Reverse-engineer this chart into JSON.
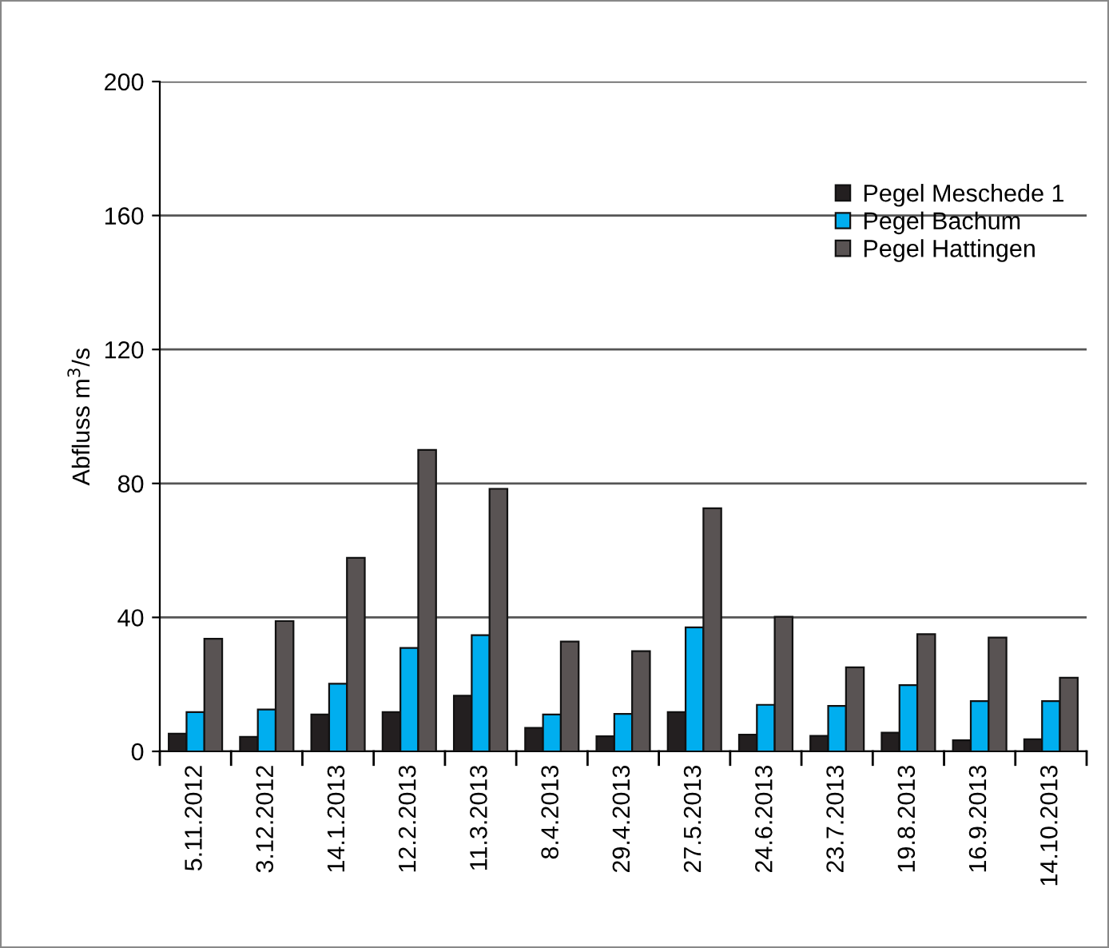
{
  "chart_data": {
    "type": "bar",
    "ylabel": "Abfluss m$^{3}$/s",
    "categories": [
      "5.11.2012",
      "3.12.2012",
      "14.1.2013",
      "12.2.2013",
      "11.3.2013",
      "8.4.2013",
      "29.4.2013",
      "27.5.2013",
      "24.6.2013",
      "23.7.2013",
      "19.8.2013",
      "16.9.2013",
      "14.10.2013"
    ],
    "series": [
      {
        "name": "Pegel Meschede 1",
        "color": "#231f20",
        "values": [
          5.3,
          4.3,
          11,
          11.7,
          16.6,
          7,
          4.5,
          11.7,
          5,
          4.6,
          5.6,
          3.3,
          3.6
        ]
      },
      {
        "name": "Pegel Bachum",
        "color": "#00aeef",
        "values": [
          11.7,
          12.5,
          20.2,
          30.9,
          34.7,
          11,
          11.2,
          37,
          13.9,
          13.6,
          19.8,
          15,
          15
        ]
      },
      {
        "name": "Pegel Hattingen",
        "color": "#595353",
        "values": [
          33.6,
          38.9,
          57.8,
          90,
          78.4,
          32.8,
          29.9,
          72.6,
          40.2,
          25.1,
          35,
          34,
          22
        ]
      }
    ],
    "ylim": [
      0,
      200
    ],
    "yticks": [
      0,
      40,
      80,
      120,
      160,
      200
    ],
    "grid": "y",
    "legend": "top right"
  }
}
